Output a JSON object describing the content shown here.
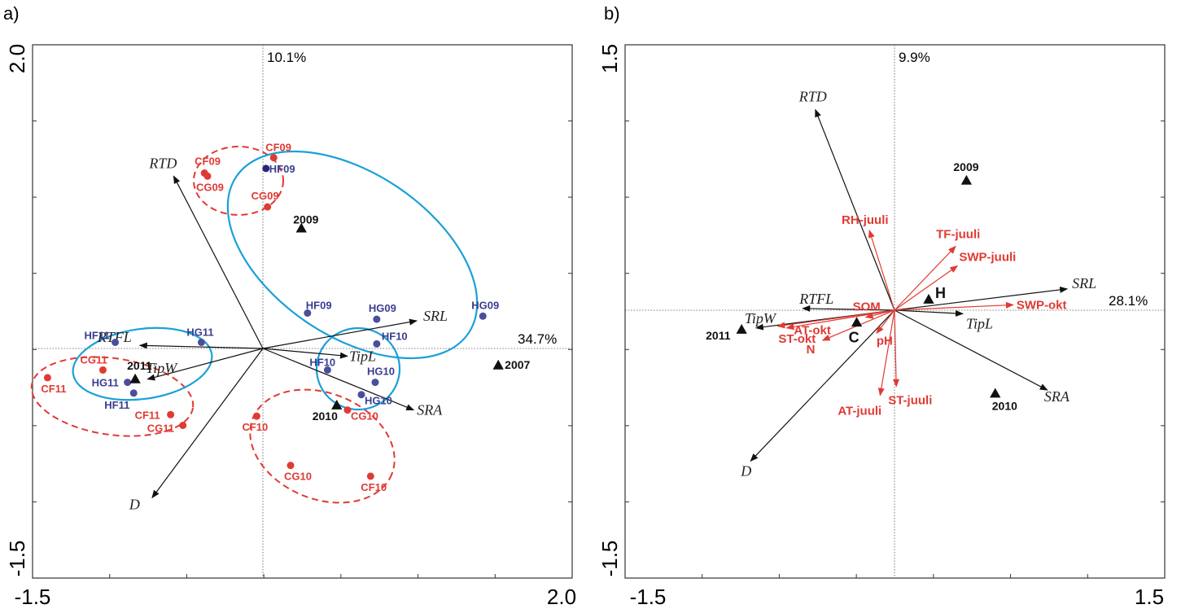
{
  "colors": {
    "red": "#e03a34",
    "blue": "#4a4f9a",
    "dark_blue": "#2d2478",
    "ellipse_blue": "#1aa0d8",
    "black": "#111111"
  },
  "chart_data": [
    {
      "panel": "a)",
      "type": "scatter",
      "xlim": [
        -1.5,
        2.0
      ],
      "ylim": [
        -1.5,
        2.0
      ],
      "corner_labels": {
        "x_min": "-1.5",
        "x_max": "2.0",
        "y_min": "-1.5",
        "y_max": "2.0"
      },
      "axis1_percent": "34.7%",
      "axis2_percent": "10.1%",
      "grid": false,
      "arrows": [
        {
          "name": "RTD",
          "x": -0.58,
          "y": 1.12
        },
        {
          "name": "SRL",
          "x": 1.0,
          "y": 0.18
        },
        {
          "name": "RTFL",
          "x": -0.8,
          "y": 0.02
        },
        {
          "name": "TipW",
          "x": -0.75,
          "y": -0.2
        },
        {
          "name": "TipL",
          "x": 0.55,
          "y": -0.05
        },
        {
          "name": "SRA",
          "x": 0.98,
          "y": -0.4
        },
        {
          "name": "D",
          "x": -0.72,
          "y": -0.97
        }
      ],
      "sites": [
        {
          "label": "CF09",
          "x": 0.07,
          "y": 1.24,
          "group": "red"
        },
        {
          "label": "HF09",
          "x": 0.02,
          "y": 1.17,
          "group": "darkblue"
        },
        {
          "label": "CF09",
          "x": -0.38,
          "y": 1.14,
          "group": "red"
        },
        {
          "label": "CG09",
          "x": -0.36,
          "y": 1.12,
          "group": "red"
        },
        {
          "label": "CG09",
          "x": 0.03,
          "y": 0.92,
          "group": "red"
        },
        {
          "label": "HF09",
          "x": 0.29,
          "y": 0.23,
          "group": "blue"
        },
        {
          "label": "HG09",
          "x": 0.74,
          "y": 0.19,
          "group": "blue"
        },
        {
          "label": "HG09",
          "x": 1.43,
          "y": 0.21,
          "group": "blue"
        },
        {
          "label": "HF10",
          "x": 0.74,
          "y": 0.03,
          "group": "blue"
        },
        {
          "label": "HF11",
          "x": -0.96,
          "y": 0.04,
          "group": "blue"
        },
        {
          "label": "HG11",
          "x": -0.4,
          "y": 0.04,
          "group": "blue"
        },
        {
          "label": "CG11",
          "x": -1.04,
          "y": -0.14,
          "group": "red"
        },
        {
          "label": "CF11",
          "x": -1.4,
          "y": -0.19,
          "group": "red"
        },
        {
          "label": "HG11",
          "x": -0.88,
          "y": -0.22,
          "group": "blue"
        },
        {
          "label": "HF11",
          "x": -0.84,
          "y": -0.29,
          "group": "blue"
        },
        {
          "label": "HF10",
          "x": 0.42,
          "y": -0.14,
          "group": "blue"
        },
        {
          "label": "HG10",
          "x": 0.73,
          "y": -0.22,
          "group": "blue"
        },
        {
          "label": "HG10",
          "x": 0.64,
          "y": -0.3,
          "group": "blue"
        },
        {
          "label": "CG10",
          "x": 0.55,
          "y": -0.4,
          "group": "red"
        },
        {
          "label": "CF11",
          "x": -0.6,
          "y": -0.43,
          "group": "red"
        },
        {
          "label": "CG11",
          "x": -0.52,
          "y": -0.5,
          "group": "red"
        },
        {
          "label": "CF10",
          "x": -0.04,
          "y": -0.44,
          "group": "red"
        },
        {
          "label": "CG10",
          "x": 0.18,
          "y": -0.76,
          "group": "red"
        },
        {
          "label": "CF10",
          "x": 0.7,
          "y": -0.83,
          "group": "red"
        }
      ],
      "years": [
        {
          "label": "2009",
          "x": 0.25,
          "y": 0.78
        },
        {
          "label": "2007",
          "x": 1.53,
          "y": -0.11
        },
        {
          "label": "2011",
          "x": -0.83,
          "y": -0.2
        },
        {
          "label": "2010",
          "x": 0.48,
          "y": -0.37
        }
      ]
    },
    {
      "panel": "b)",
      "type": "scatter",
      "xlim": [
        -1.5,
        1.5
      ],
      "ylim": [
        -1.5,
        1.5
      ],
      "corner_labels": {
        "x_min": "-1.5",
        "x_max": "1.5",
        "y_min": "-1.5",
        "y_max": "1.5"
      },
      "axis1_percent": "28.1%",
      "axis2_percent": "9.9%",
      "grid": false,
      "trait_arrows": [
        {
          "name": "RTD",
          "x": -0.44,
          "y": 1.13
        },
        {
          "name": "SRL",
          "x": 0.96,
          "y": 0.12
        },
        {
          "name": "RTFL",
          "x": -0.51,
          "y": 0.01
        },
        {
          "name": "TipW",
          "x": -0.77,
          "y": -0.1
        },
        {
          "name": "TipL",
          "x": 0.38,
          "y": -0.02
        },
        {
          "name": "SRA",
          "x": 0.85,
          "y": -0.45
        },
        {
          "name": "D",
          "x": -0.8,
          "y": -0.85
        }
      ],
      "env_arrows": [
        {
          "name": "RH-juuli",
          "x": -0.14,
          "y": 0.45
        },
        {
          "name": "TF-juuli",
          "x": 0.34,
          "y": 0.36
        },
        {
          "name": "SWP-juuli",
          "x": 0.35,
          "y": 0.25
        },
        {
          "name": "SWP-okt",
          "x": 0.66,
          "y": 0.03
        },
        {
          "name": "AT-okt",
          "x": -0.65,
          "y": -0.09
        },
        {
          "name": "ST-okt",
          "x": -0.6,
          "y": -0.1
        },
        {
          "name": "N",
          "x": -0.4,
          "y": -0.17
        },
        {
          "name": "pH",
          "x": -0.1,
          "y": -0.13
        },
        {
          "name": "SOM",
          "x": -0.16,
          "y": -0.04
        },
        {
          "name": "AT-juuli",
          "x": -0.08,
          "y": -0.48
        },
        {
          "name": "ST-juuli",
          "x": 0.01,
          "y": -0.43
        }
      ],
      "points": [
        {
          "label": "2009",
          "x": 0.4,
          "y": 0.73,
          "size": "small"
        },
        {
          "label": "2011",
          "x": -0.85,
          "y": -0.11,
          "size": "small"
        },
        {
          "label": "2010",
          "x": 0.56,
          "y": -0.47,
          "size": "small"
        },
        {
          "label": "H",
          "x": 0.19,
          "y": 0.06,
          "size": "big"
        },
        {
          "label": "C",
          "x": -0.21,
          "y": -0.07,
          "size": "big"
        }
      ]
    }
  ]
}
